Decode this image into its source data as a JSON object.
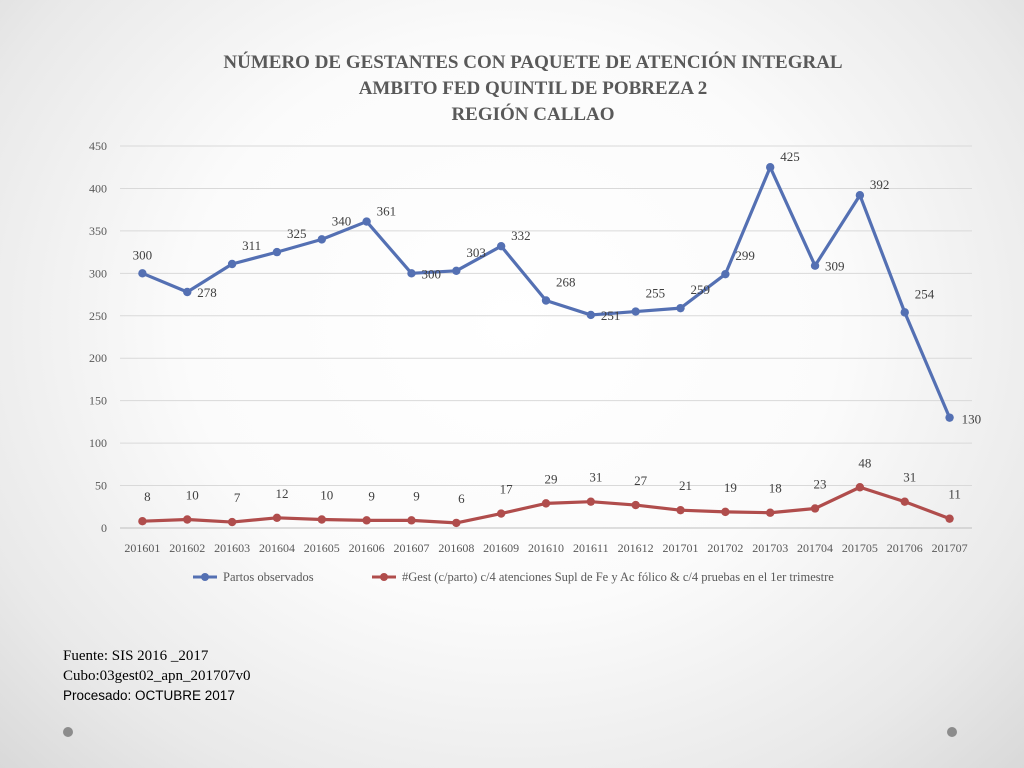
{
  "chart_data": {
    "type": "line",
    "title": [
      "NÚMERO DE GESTANTES CON PAQUETE DE ATENCIÓN INTEGRAL",
      "AMBITO FED QUINTIL DE POBREZA 2",
      "REGIÓN CALLAO"
    ],
    "categories": [
      "201601",
      "201602",
      "201603",
      "201604",
      "201605",
      "201606",
      "201607",
      "201608",
      "201609",
      "201610",
      "201611",
      "201612",
      "201701",
      "201702",
      "201703",
      "201704",
      "201705",
      "201706",
      "201707"
    ],
    "series": [
      {
        "name": "Partos observados",
        "color": "#5470b3",
        "values": [
          300,
          278,
          311,
          325,
          340,
          361,
          300,
          303,
          332,
          268,
          251,
          255,
          259,
          299,
          425,
          309,
          392,
          254,
          130
        ]
      },
      {
        "name": "#Gest (c/parto) c/4 atenciones Supl de Fe y Ac fólico & c/4 pruebas en el 1er trimestre",
        "color": "#b04d4c",
        "values": [
          8,
          10,
          7,
          12,
          10,
          9,
          9,
          6,
          17,
          29,
          31,
          27,
          21,
          19,
          18,
          23,
          48,
          31,
          11
        ]
      }
    ],
    "ylim": [
      0,
      450
    ],
    "yticks": [
      0,
      50,
      100,
      150,
      200,
      250,
      300,
      350,
      400,
      450
    ],
    "grid": true,
    "legend": "bottom"
  },
  "footer": {
    "source": "Fuente: SIS 2016 _2017",
    "cube": "Cubo:03gest02_apn_201707v0",
    "processed": "Procesado: OCTUBRE 2017"
  }
}
